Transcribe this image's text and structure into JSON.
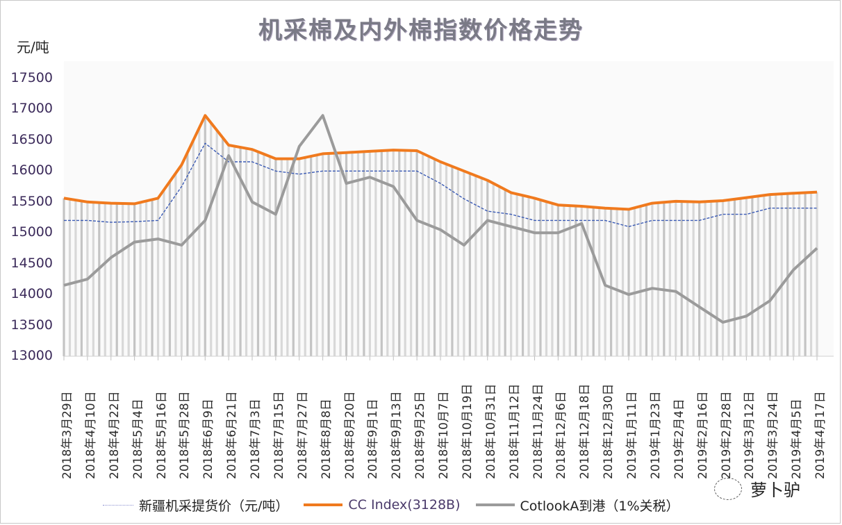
{
  "chart_data": {
    "type": "line",
    "title": "机采棉及内外棉指数价格走势",
    "ylabel": "元/吨",
    "xlabel": "",
    "ylim": [
      13000,
      17500
    ],
    "yticks": [
      17500,
      17000,
      16500,
      16000,
      15500,
      15000,
      14500,
      14000,
      13500,
      13000
    ],
    "grid": false,
    "legend_position": "bottom",
    "categories": [
      "2018年3月29日",
      "2018年4月10日",
      "2018年4月22日",
      "2018年5月4日",
      "2018年5月16日",
      "2018年5月28日",
      "2018年6月9日",
      "2018年6月21日",
      "2018年7月3日",
      "2018年7月15日",
      "2018年7月27日",
      "2018年8月8日",
      "2018年8月20日",
      "2018年9月1日",
      "2018年9月13日",
      "2018年9月25日",
      "2018年10月7日",
      "2018年10月19日",
      "2018年10月31日",
      "2018年11月12日",
      "2018年11月24日",
      "2018年12月6日",
      "2018年12月18日",
      "2018年12月30日",
      "2019年1月11日",
      "2019年1月23日",
      "2019年2月4日",
      "2019年2月16日",
      "2019年2月28日",
      "2019年3月12日",
      "2019年3月24日",
      "2019年4月5日",
      "2019年4月17日"
    ],
    "series": [
      {
        "name": "新疆机采提货价（元/吨）",
        "style": "dashed",
        "color": "#3b5bb5",
        "values": [
          15200,
          15200,
          15170,
          15180,
          15200,
          15750,
          16450,
          16150,
          16150,
          16000,
          15950,
          16000,
          16000,
          16000,
          16000,
          16000,
          15800,
          15550,
          15350,
          15300,
          15200,
          15200,
          15200,
          15200,
          15100,
          15200,
          15200,
          15200,
          15300,
          15300,
          15400,
          15400,
          15400
        ]
      },
      {
        "name": "CC Index(3128B)",
        "style": "solid",
        "color": "#f07a1e",
        "values": [
          15560,
          15500,
          15480,
          15470,
          15560,
          16100,
          16900,
          16420,
          16350,
          16200,
          16200,
          16280,
          16300,
          16320,
          16340,
          16330,
          16150,
          16000,
          15850,
          15650,
          15560,
          15450,
          15430,
          15400,
          15380,
          15480,
          15510,
          15500,
          15520,
          15570,
          15620,
          15640,
          15660
        ]
      },
      {
        "name": "CotlookA到港（1%关税）",
        "style": "solid",
        "color": "#9b9b9b",
        "values": [
          14150,
          14250,
          14600,
          14850,
          14900,
          14800,
          15200,
          16250,
          15500,
          15300,
          16400,
          16900,
          15800,
          15900,
          15750,
          15200,
          15050,
          14800,
          15200,
          15100,
          15000,
          15000,
          15150,
          14150,
          14000,
          14100,
          14050,
          13800,
          13550,
          13650,
          13900,
          14400,
          14750
        ]
      }
    ]
  },
  "legend": {
    "items": [
      {
        "label": "新疆机采提货价（元/吨）",
        "color": "#8a8fd0"
      },
      {
        "label": "CC Index(3128B)",
        "color": "#f07a1e"
      },
      {
        "label": "CotlookA到港（1%关税）",
        "color": "#9b9b9b"
      }
    ]
  },
  "watermark": {
    "text": "萝卜驴"
  }
}
